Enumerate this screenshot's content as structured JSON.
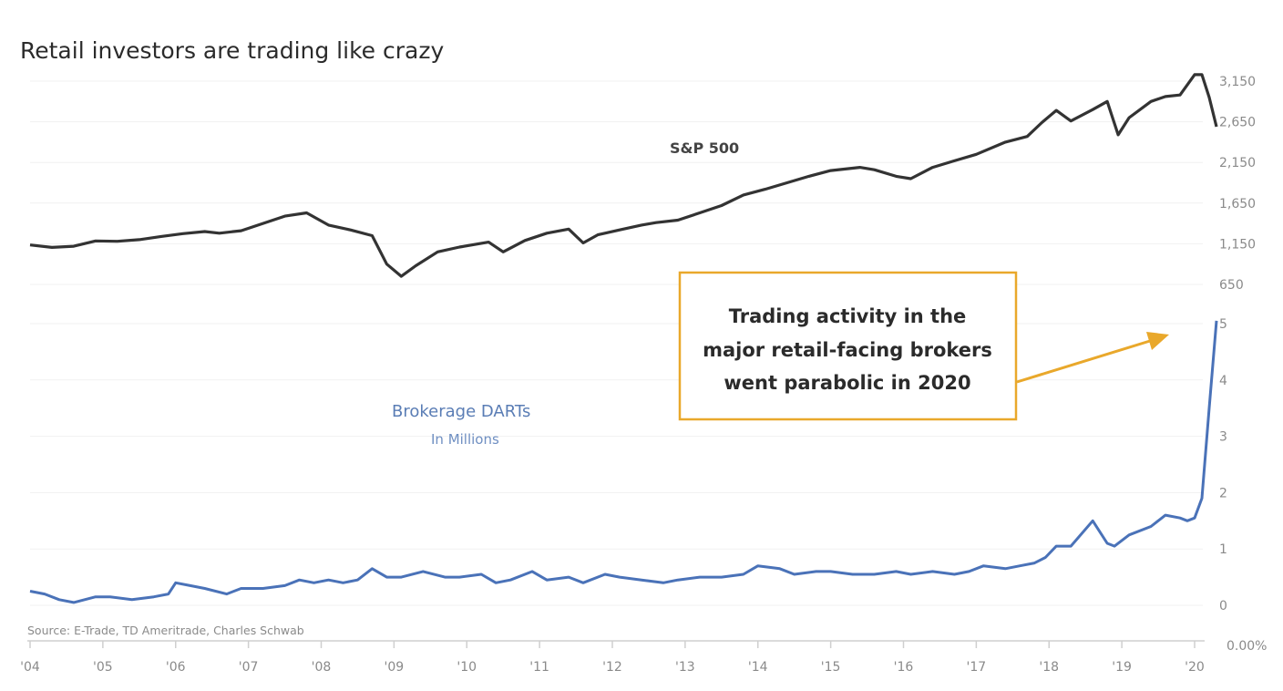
{
  "chart_data": {
    "type": "line",
    "title": "Retail investors are trading like crazy",
    "source": "Source: E-Trade, TD Ameritrade, Charles Schwab",
    "x_tick_labels": [
      "'04",
      "'05",
      "'06",
      "'07",
      "'08",
      "'09",
      "'10",
      "'11",
      "'12",
      "'13",
      "'14",
      "'15",
      "'16",
      "'17",
      "'18",
      "'19",
      "'20"
    ],
    "x_range": [
      2004,
      2020
    ],
    "baseline_label": "0.00%",
    "grid": true,
    "panels": [
      {
        "name": "sp500",
        "label": "S&P 500",
        "color": "#333333",
        "y_tick_labels": [
          "3,150",
          "2,650",
          "2,150",
          "1,650",
          "1,150",
          "650"
        ],
        "y_ticks": [
          3150,
          2650,
          2150,
          1650,
          1150,
          650
        ],
        "ylim": [
          650,
          3150
        ],
        "series": {
          "name": "S&P 500",
          "x": [
            2004.0,
            2004.3,
            2004.6,
            2004.9,
            2005.2,
            2005.5,
            2005.8,
            2006.1,
            2006.4,
            2006.6,
            2006.9,
            2007.2,
            2007.5,
            2007.8,
            2008.1,
            2008.4,
            2008.7,
            2008.9,
            2009.1,
            2009.3,
            2009.6,
            2009.9,
            2010.3,
            2010.5,
            2010.8,
            2011.1,
            2011.4,
            2011.6,
            2011.8,
            2012.1,
            2012.4,
            2012.6,
            2012.9,
            2013.2,
            2013.5,
            2013.8,
            2014.1,
            2014.4,
            2014.7,
            2015.0,
            2015.4,
            2015.6,
            2015.9,
            2016.1,
            2016.4,
            2016.7,
            2017.0,
            2017.4,
            2017.7,
            2017.9,
            2018.1,
            2018.3,
            2018.6,
            2018.8,
            2018.95,
            2019.1,
            2019.4,
            2019.6,
            2019.8,
            2020.0,
            2020.1,
            2020.2,
            2020.3
          ],
          "y": [
            1135,
            1105,
            1120,
            1185,
            1180,
            1200,
            1240,
            1275,
            1300,
            1280,
            1310,
            1400,
            1490,
            1530,
            1380,
            1320,
            1250,
            900,
            750,
            880,
            1050,
            1110,
            1170,
            1050,
            1190,
            1280,
            1330,
            1160,
            1260,
            1320,
            1380,
            1410,
            1440,
            1530,
            1620,
            1750,
            1820,
            1900,
            1980,
            2050,
            2090,
            2060,
            1980,
            1950,
            2090,
            2170,
            2250,
            2400,
            2470,
            2640,
            2790,
            2660,
            2800,
            2900,
            2490,
            2700,
            2900,
            2960,
            2980,
            3230,
            3230,
            2950,
            2590
          ]
        }
      },
      {
        "name": "darts",
        "label": "Brokerage DARTs",
        "sublabel": "In Millions",
        "color": "#4a72b8",
        "y_tick_labels": [
          "5",
          "4",
          "3",
          "2",
          "1",
          "0"
        ],
        "y_ticks": [
          5,
          4,
          3,
          2,
          1,
          0
        ],
        "ylim": [
          0,
          5
        ],
        "series": {
          "name": "Brokerage DARTs (millions)",
          "x": [
            2004.0,
            2004.2,
            2004.4,
            2004.6,
            2004.9,
            2005.1,
            2005.4,
            2005.7,
            2005.9,
            2006.0,
            2006.2,
            2006.4,
            2006.7,
            2006.9,
            2007.2,
            2007.5,
            2007.7,
            2007.9,
            2008.1,
            2008.3,
            2008.5,
            2008.7,
            2008.9,
            2009.1,
            2009.4,
            2009.7,
            2009.9,
            2010.2,
            2010.4,
            2010.6,
            2010.9,
            2011.1,
            2011.4,
            2011.6,
            2011.9,
            2012.1,
            2012.4,
            2012.7,
            2012.9,
            2013.2,
            2013.5,
            2013.8,
            2014.0,
            2014.3,
            2014.5,
            2014.8,
            2015.0,
            2015.3,
            2015.6,
            2015.9,
            2016.1,
            2016.4,
            2016.7,
            2016.9,
            2017.1,
            2017.4,
            2017.6,
            2017.8,
            2017.95,
            2018.1,
            2018.3,
            2018.6,
            2018.8,
            2018.9,
            2019.1,
            2019.4,
            2019.6,
            2019.8,
            2019.9,
            2020.0,
            2020.1,
            2020.2,
            2020.3
          ],
          "y": [
            0.25,
            0.2,
            0.1,
            0.05,
            0.15,
            0.15,
            0.1,
            0.15,
            0.2,
            0.4,
            0.35,
            0.3,
            0.2,
            0.3,
            0.3,
            0.35,
            0.45,
            0.4,
            0.45,
            0.4,
            0.45,
            0.65,
            0.5,
            0.5,
            0.6,
            0.5,
            0.5,
            0.55,
            0.4,
            0.45,
            0.6,
            0.45,
            0.5,
            0.4,
            0.55,
            0.5,
            0.45,
            0.4,
            0.45,
            0.5,
            0.5,
            0.55,
            0.7,
            0.65,
            0.55,
            0.6,
            0.6,
            0.55,
            0.55,
            0.6,
            0.55,
            0.6,
            0.55,
            0.6,
            0.7,
            0.65,
            0.7,
            0.75,
            0.85,
            1.05,
            1.05,
            1.5,
            1.1,
            1.05,
            1.25,
            1.4,
            1.6,
            1.55,
            1.5,
            1.55,
            1.9,
            3.5,
            5.05
          ]
        }
      }
    ],
    "annotation": {
      "lines": [
        "Trading activity in the",
        "major retail-facing brokers",
        "went parabolic in 2020"
      ],
      "border_color": "#e9a82b",
      "arrow_color": "#e9a82b"
    }
  }
}
